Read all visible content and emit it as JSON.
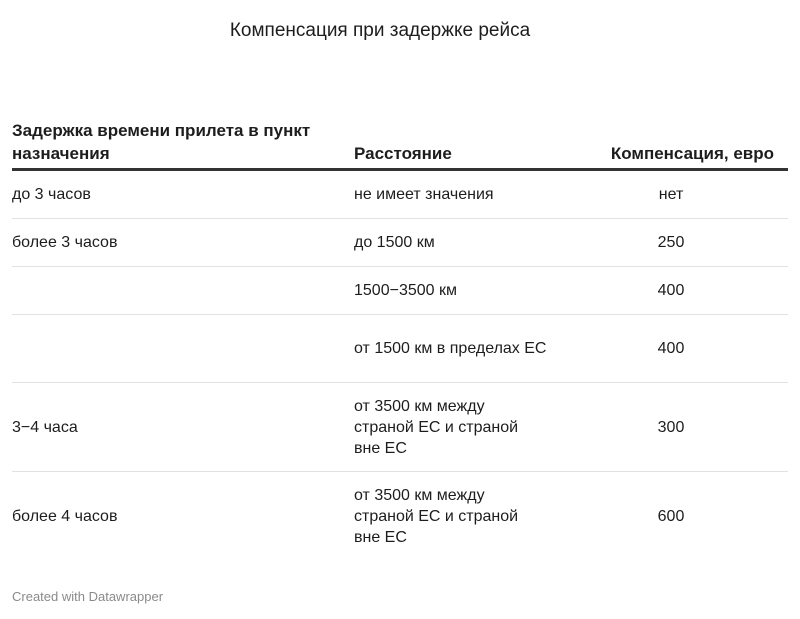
{
  "chart_data": {
    "type": "table",
    "title": "Компенсация при задержке рейса",
    "columns": [
      "Задержка времени прилета в пункт назначения",
      "Расстояние",
      "Компенсация, евро"
    ],
    "rows": [
      {
        "delay": "до 3 часов",
        "distance": "не имеет значения",
        "compensation": "нет"
      },
      {
        "delay": "более 3 часов",
        "distance": "до 1500 км",
        "compensation": "250"
      },
      {
        "delay": "",
        "distance": "1500−3500 км",
        "compensation": "400"
      },
      {
        "delay": "",
        "distance": "от 1500 км в пределах ЕС",
        "compensation": "400"
      },
      {
        "delay": "3−4 часа",
        "distance": "от 3500 км между страной ЕС и страной вне ЕС",
        "compensation": "300"
      },
      {
        "delay": "более 4 часов",
        "distance": "от 3500 км между страной ЕС и страной вне ЕС",
        "compensation": "600"
      }
    ]
  },
  "footer": {
    "credit": "Created with Datawrapper"
  }
}
